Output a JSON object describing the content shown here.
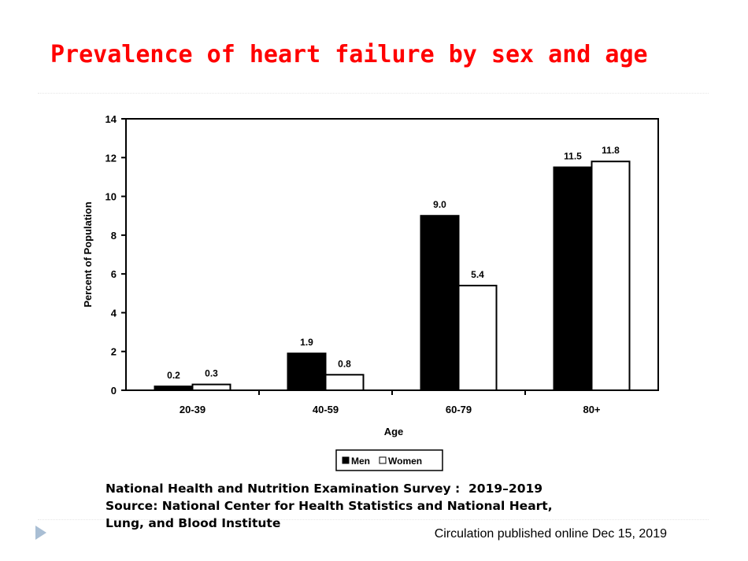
{
  "slide": {
    "title": "Prevalence of heart failure by sex and age",
    "caption_lines": [
      "National Health and Nutrition Examination Survey :  2019–2019",
      "Source: National Center for Health Statistics and National Heart,",
      "Lung, and Blood Institute"
    ],
    "credit": "Circulation published online Dec 15, 2019",
    "title_color": "#ff0000",
    "bullet_icon": "triangle-bullet-icon"
  },
  "chart_data": {
    "type": "bar",
    "title": "",
    "xlabel": "Age",
    "ylabel": "Percent of Population",
    "categories": [
      "20-39",
      "40-59",
      "60-79",
      "80+"
    ],
    "series": [
      {
        "name": "Men",
        "values": [
          0.2,
          1.9,
          9.0,
          11.5
        ],
        "fill": "#000000"
      },
      {
        "name": "Women",
        "values": [
          0.3,
          0.8,
          5.4,
          11.8
        ],
        "fill": "#ffffff"
      }
    ],
    "value_labels": [
      [
        "0.2",
        "1.9",
        "9.0",
        "11.5"
      ],
      [
        "0.3",
        "0.8",
        "5.4",
        "11.8"
      ]
    ],
    "ylim": [
      0,
      14
    ],
    "yticks": [
      0,
      2,
      4,
      6,
      8,
      10,
      12,
      14
    ],
    "grid": false,
    "legend": "bottom-center"
  }
}
